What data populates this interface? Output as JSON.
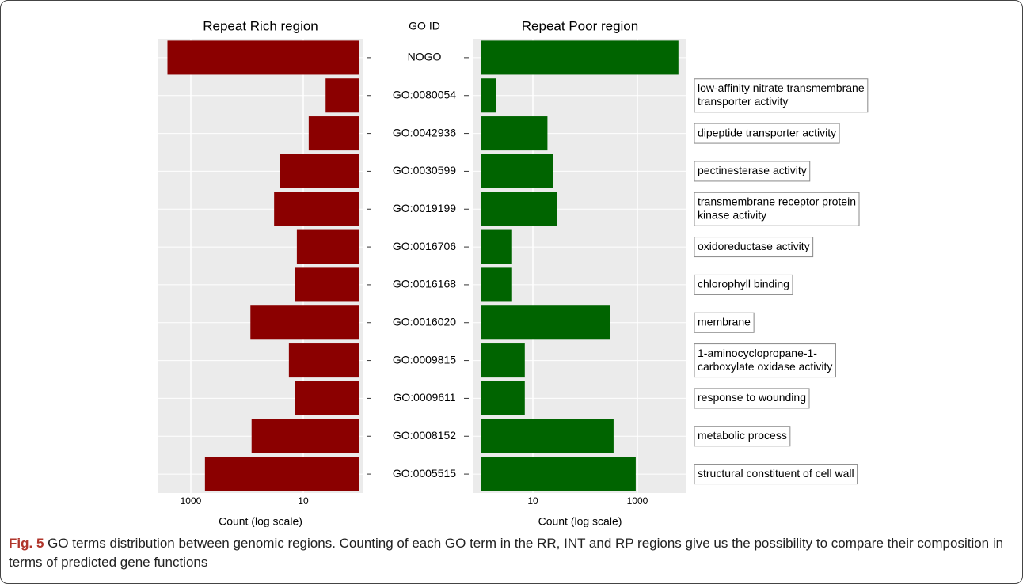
{
  "chart_data": {
    "type": "bar",
    "category_header": "GO ID",
    "log_scale": true,
    "categories": [
      "NOGO",
      "GO:0080054",
      "GO:0042936",
      "GO:0030599",
      "GO:0019199",
      "GO:0016706",
      "GO:0016168",
      "GO:0016020",
      "GO:0009815",
      "GO:0009611",
      "GO:0008152",
      "GO:0005515"
    ],
    "descriptions": [
      null,
      [
        "low-affinity nitrate transmembrane",
        "transporter activity"
      ],
      [
        "dipeptide transporter activity"
      ],
      [
        "pectinesterase activity"
      ],
      [
        "transmembrane receptor protein",
        "kinase activity"
      ],
      [
        "oxidoreductase activity"
      ],
      [
        "chlorophyll binding"
      ],
      [
        "membrane"
      ],
      [
        "1-aminocyclopropane-1-",
        "carboxylate oxidase activity"
      ],
      [
        "response to wounding"
      ],
      [
        "metabolic process"
      ],
      [
        "structural constituent of cell wall"
      ]
    ],
    "series": [
      {
        "name": "Repeat Rich region",
        "color": "#8b0000",
        "x_label": "Count (log scale)",
        "x_reversed": true,
        "xlim": [
          0.85,
          3900
        ],
        "xticks": [
          1000,
          10
        ],
        "values": [
          2600,
          4,
          8,
          26,
          33,
          13,
          14,
          87,
          18,
          14,
          83,
          560
        ]
      },
      {
        "name": "Repeat Poor region",
        "color": "#006400",
        "x_label": "Count (log scale)",
        "x_reversed": false,
        "xlim": [
          0.73,
          8700
        ],
        "xticks": [
          10,
          1000
        ],
        "values": [
          6100,
          2,
          19,
          24,
          29,
          4,
          4,
          300,
          7,
          7,
          350,
          930
        ]
      }
    ]
  },
  "caption": {
    "label": "Fig. 5",
    "text": "GO terms distribution between genomic regions. Counting of each GO term in the RR, INT and RP regions give us the possibility to compare their composition in terms of predicted gene functions"
  }
}
